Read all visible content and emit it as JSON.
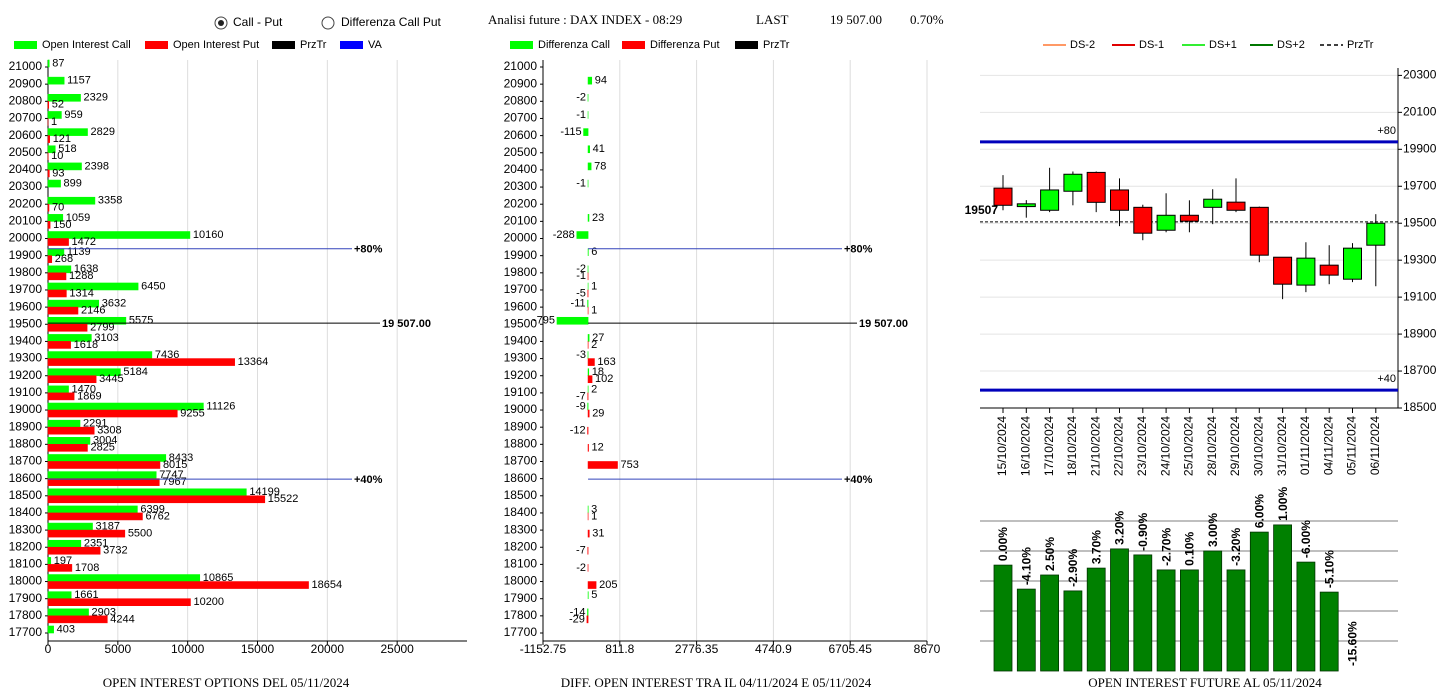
{
  "header": {
    "options": [
      "Call - Put",
      "Differenza Call Put"
    ],
    "selected": 0,
    "title": "Analisi future : DAX INDEX - 08:29",
    "last_label": "LAST",
    "last_value": "19 507.00",
    "change": "0.70%"
  },
  "chart_data": [
    {
      "type": "hbar",
      "title": "OPEN INTEREST OPTIONS DEL 05/11/2024",
      "categories": [
        21000,
        20900,
        20800,
        20700,
        20600,
        20500,
        20400,
        20300,
        20200,
        20100,
        20000,
        19900,
        19800,
        19700,
        19600,
        19500,
        19400,
        19300,
        19200,
        19100,
        19000,
        18900,
        18800,
        18700,
        18600,
        18500,
        18400,
        18300,
        18200,
        18100,
        18000,
        17900,
        17800,
        17700
      ],
      "series": [
        {
          "name": "Open Interest Call",
          "color": "#00ff00",
          "values": [
            87,
            1157,
            2329,
            959,
            2829,
            518,
            2398,
            899,
            3358,
            1059,
            10160,
            1139,
            1638,
            6450,
            3632,
            5575,
            3103,
            7436,
            5184,
            1470,
            11126,
            2291,
            3004,
            8433,
            7747,
            14199,
            6399,
            3187,
            2351,
            197,
            10865,
            1661,
            2903,
            403
          ]
        },
        {
          "name": "Open Interest Put",
          "color": "#ff0000",
          "values": [
            null,
            null,
            52,
            1,
            121,
            10,
            93,
            null,
            70,
            150,
            1472,
            268,
            1288,
            1314,
            2146,
            2799,
            1618,
            13364,
            3445,
            1869,
            9255,
            3308,
            2825,
            8015,
            7967,
            15522,
            6762,
            5500,
            3732,
            1708,
            18654,
            10200,
            4244,
            null
          ]
        }
      ],
      "legend_extra": [
        {
          "name": "PrzTr",
          "color": "#000000"
        },
        {
          "name": "VA",
          "color": "#0000ff"
        }
      ],
      "xlim": [
        0,
        30000
      ],
      "xticks": [
        0,
        5000,
        10000,
        15000,
        20000,
        25000
      ],
      "grid": true,
      "lines": [
        {
          "value": 19507,
          "label": "19 507.00",
          "color": "#000000"
        },
        {
          "value": 19940,
          "label": "+80%",
          "color": "#3344bb"
        },
        {
          "value": 18597,
          "label": "+40%",
          "color": "#3344bb"
        }
      ]
    },
    {
      "type": "hbar",
      "title": "DIFF. OPEN INTEREST TRA IL 04/11/2024 E 05/11/2024",
      "categories": [
        21000,
        20900,
        20800,
        20700,
        20600,
        20500,
        20400,
        20300,
        20200,
        20100,
        20000,
        19900,
        19800,
        19700,
        19600,
        19500,
        19400,
        19300,
        19200,
        19100,
        19000,
        18900,
        18800,
        18700,
        18600,
        18500,
        18400,
        18300,
        18200,
        18100,
        18000,
        17900,
        17800,
        17700
      ],
      "series": [
        {
          "name": "Differenza Call",
          "color": "#00ff00",
          "values": [
            null,
            94,
            -2,
            -1,
            -115,
            41,
            78,
            -1,
            null,
            23,
            -288,
            6,
            -2,
            1,
            -11,
            -795,
            27,
            -3,
            18,
            2,
            -9,
            null,
            null,
            null,
            null,
            null,
            3,
            null,
            null,
            null,
            null,
            5,
            -14,
            null
          ]
        },
        {
          "name": "Differenza Put",
          "color": "#ff0000",
          "values": [
            null,
            null,
            null,
            null,
            null,
            null,
            null,
            null,
            null,
            null,
            null,
            null,
            -1,
            -5,
            1,
            null,
            2,
            163,
            102,
            -7,
            29,
            -12,
            12,
            753,
            null,
            null,
            1,
            31,
            -7,
            -2,
            205,
            null,
            -29,
            null
          ]
        }
      ],
      "legend_extra": [
        {
          "name": "PrzTr",
          "color": "#000000"
        }
      ],
      "xlim": [
        -1152.75,
        8670
      ],
      "xticks": [
        -1152.75,
        811.8,
        2776.35,
        4740.9,
        6705.45,
        8670
      ],
      "grid": true,
      "lines": [
        {
          "value": 19507,
          "label": "19 507.00",
          "color": "#000000"
        },
        {
          "value": 19940,
          "label": "+80%",
          "color": "#3344bb"
        },
        {
          "value": 18597,
          "label": "+40%",
          "color": "#3344bb"
        }
      ]
    },
    {
      "type": "candlestick",
      "categories": [
        "15/10/2024",
        "16/10/2024",
        "17/10/2024",
        "18/10/2024",
        "21/10/2024",
        "22/10/2024",
        "23/10/2024",
        "24/10/2024",
        "25/10/2024",
        "28/10/2024",
        "29/10/2024",
        "30/10/2024",
        "31/10/2024",
        "01/11/2024",
        "04/11/2024",
        "05/11/2024",
        "06/11/2024"
      ],
      "open": [
        19690,
        19590,
        19570,
        19673,
        19775,
        19680,
        19586,
        19462,
        19543,
        19586,
        19614,
        19586,
        19316,
        19165,
        19273,
        19197,
        19381
      ],
      "high": [
        19760,
        19625,
        19800,
        19780,
        19780,
        19743,
        19600,
        19662,
        19624,
        19684,
        19743,
        19590,
        19316,
        19397,
        19381,
        19392,
        19549
      ],
      "low": [
        19570,
        19530,
        19560,
        19597,
        19560,
        19484,
        19408,
        19451,
        19451,
        19495,
        19560,
        19289,
        19089,
        19127,
        19170,
        19181,
        19159
      ],
      "close": [
        19597,
        19605,
        19680,
        19765,
        19613,
        19570,
        19446,
        19543,
        19511,
        19630,
        19570,
        19327,
        19170,
        19311,
        19219,
        19365,
        19500
      ],
      "up_color": "#00ff00",
      "down_color": "#ff0000",
      "ylim": [
        18500,
        20340
      ],
      "yticks": [
        18500,
        18700,
        18900,
        19100,
        19300,
        19500,
        19700,
        19900,
        20100,
        20300
      ],
      "grid": true,
      "series": [
        {
          "name": "DS-2",
          "color": "#ff9966"
        },
        {
          "name": "DS-1",
          "color": "#e00000"
        },
        {
          "name": "DS+1",
          "color": "#33ee33"
        },
        {
          "name": "DS+2",
          "color": "#007700"
        },
        {
          "name": "PrzTr",
          "color": "#000000",
          "dash": true
        }
      ],
      "levels": [
        {
          "value": 19940,
          "label": "+80",
          "color": "#0000bb"
        },
        {
          "value": 18597,
          "label": "+40",
          "color": "#0000bb"
        }
      ],
      "last": 19507
    },
    {
      "type": "bar",
      "title": "OPEN INTEREST FUTURE AL 05/11/2024",
      "values": [
        3.53,
        2.73,
        3.2,
        2.67,
        3.43,
        4.07,
        3.87,
        3.37,
        3.37,
        4.0,
        3.37,
        4.63,
        4.87,
        3.63,
        2.63,
        null
      ],
      "labels": [
        "0.00%",
        "-4.10%",
        "2.50%",
        "-2.90%",
        "3.70%",
        "3.20%",
        "-0.90%",
        "-2.70%",
        "0.10%",
        "3.00%",
        "-3.20%",
        "6.00%",
        "1.00%",
        "-6.00%",
        "-5.10%",
        "-15.60%"
      ],
      "color": "#008000",
      "ylim": [
        0,
        5
      ],
      "grid_lines": [
        1,
        2,
        3,
        4,
        5
      ]
    }
  ]
}
